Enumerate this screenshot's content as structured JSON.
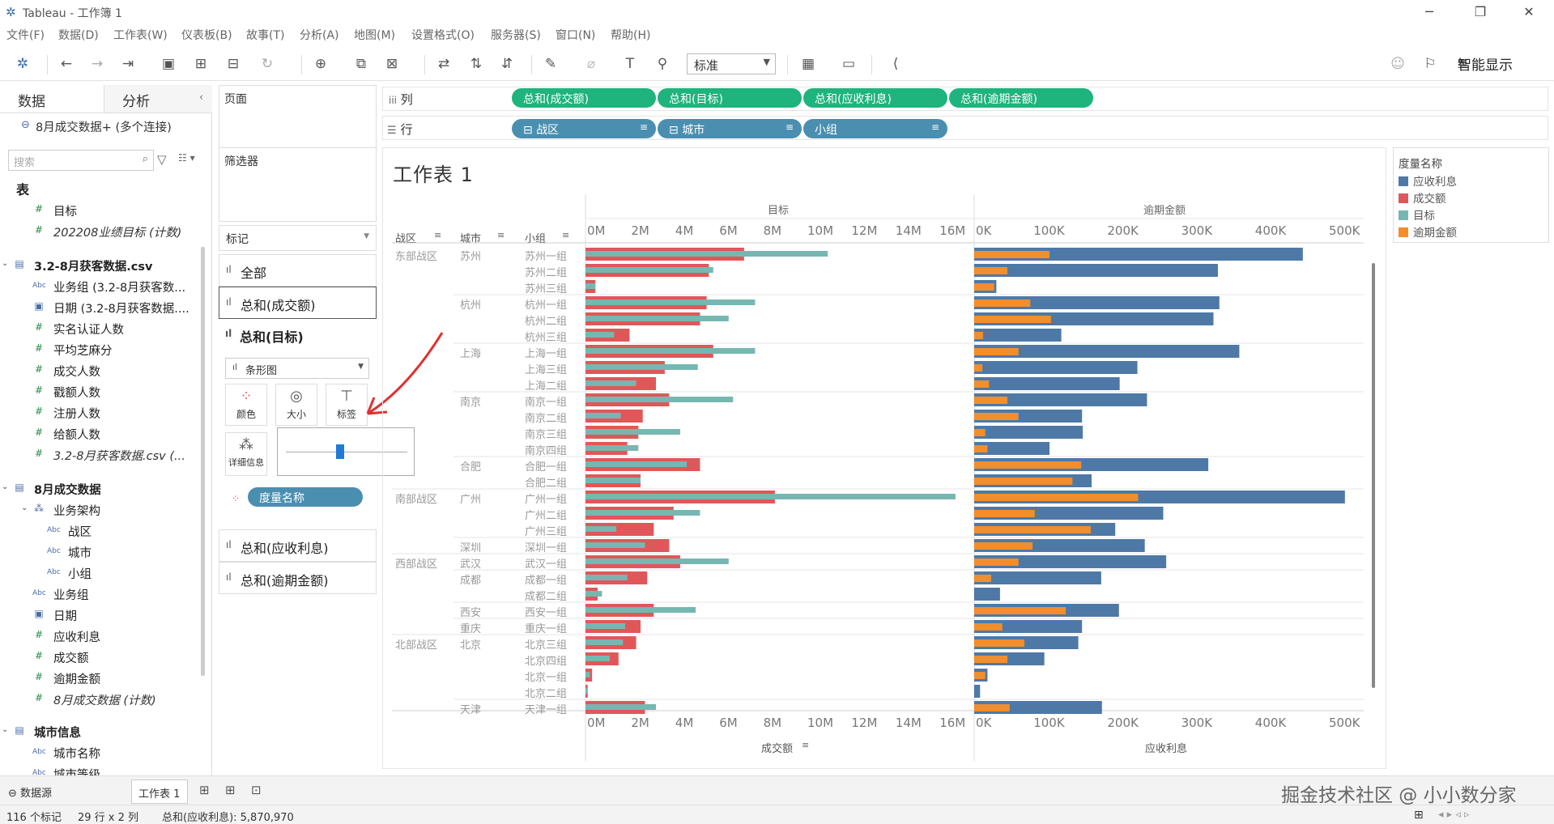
{
  "window": {
    "title": "Tableau - 工作簿 1"
  },
  "menu": [
    "文件(F)",
    "数据(D)",
    "工作表(W)",
    "仪表板(B)",
    "故事(T)",
    "分析(A)",
    "地图(M)",
    "设置格式(O)",
    "服务器(S)",
    "窗口(N)",
    "帮助(H)"
  ],
  "toolbar": {
    "fit": "标准",
    "smart_show": "智能显示"
  },
  "data_pane": {
    "tab_data": "数据",
    "tab_analysis": "分析",
    "connection": "8月成交数据+ (多个连接)",
    "search_placeholder": "搜索",
    "tables_header": "表",
    "items": [
      {
        "label": "目标",
        "kind": "measure",
        "level": 1
      },
      {
        "label": "202208业绩目标 (计数)",
        "kind": "measure",
        "level": 1,
        "italic": true
      },
      {
        "label": "3.2-8月获客数据.csv",
        "kind": "group",
        "level": 0
      },
      {
        "label": "业务组 (3.2-8月获客数...",
        "kind": "dim",
        "level": 1
      },
      {
        "label": "日期 (3.2-8月获客数据....",
        "kind": "date",
        "level": 1
      },
      {
        "label": "实名认证人数",
        "kind": "measure",
        "level": 1
      },
      {
        "label": "平均芝麻分",
        "kind": "measure",
        "level": 1
      },
      {
        "label": "成交人数",
        "kind": "measure",
        "level": 1
      },
      {
        "label": "戳额人数",
        "kind": "measure",
        "level": 1
      },
      {
        "label": "注册人数",
        "kind": "measure",
        "level": 1
      },
      {
        "label": "给额人数",
        "kind": "measure",
        "level": 1
      },
      {
        "label": "3.2-8月获客数据.csv (...",
        "kind": "measure",
        "level": 1,
        "italic": true
      },
      {
        "label": "8月成交数据",
        "kind": "group",
        "level": 0
      },
      {
        "label": "业务架构",
        "kind": "hier",
        "level": 1
      },
      {
        "label": "战区",
        "kind": "dim",
        "level": 2
      },
      {
        "label": "城市",
        "kind": "dim",
        "level": 2
      },
      {
        "label": "小组",
        "kind": "dim",
        "level": 2
      },
      {
        "label": "业务组",
        "kind": "dim",
        "level": 1
      },
      {
        "label": "日期",
        "kind": "date",
        "level": 1
      },
      {
        "label": "应收利息",
        "kind": "measure",
        "level": 1
      },
      {
        "label": "成交额",
        "kind": "measure",
        "level": 1
      },
      {
        "label": "逾期金额",
        "kind": "measure",
        "level": 1
      },
      {
        "label": "8月成交数据 (计数)",
        "kind": "measure",
        "level": 1,
        "italic": true
      },
      {
        "label": "城市信息",
        "kind": "group",
        "level": 0
      },
      {
        "label": "城市名称",
        "kind": "dim",
        "level": 1
      },
      {
        "label": "城市等级",
        "kind": "dim",
        "level": 1
      }
    ]
  },
  "shelves": {
    "pages": "页面",
    "filters": "筛选器",
    "marks": "标记",
    "marks_all": "全部",
    "marks_sum_deal": "总和(成交额)",
    "marks_sum_target": "总和(目标)",
    "mark_type": "条形图",
    "mark_color": "颜色",
    "mark_size": "大小",
    "mark_label": "标签",
    "mark_detail": "详细信息",
    "measure_names_pill": "度量名称",
    "marks_sum_interest": "总和(应收利息)",
    "marks_sum_overdue": "总和(逾期金额)",
    "columns_label": "列",
    "rows_label": "行",
    "columns": [
      "总和(成交额)",
      "总和(目标)",
      "总和(应收利息)",
      "总和(逾期金额)"
    ],
    "rows": [
      "战区",
      "城市",
      "小组"
    ]
  },
  "worksheet": {
    "title": "工作表 1",
    "header_left": "目标",
    "header_right": "逾期金额",
    "col_headers": [
      "战区",
      "城市",
      "小组"
    ],
    "left_axis_ticks": [
      "0M",
      "2M",
      "4M",
      "6M",
      "8M",
      "10M",
      "12M",
      "14M",
      "16M"
    ],
    "right_axis_ticks": [
      "0K",
      "100K",
      "200K",
      "300K",
      "400K",
      "500K"
    ],
    "bottom_left_label": "成交额",
    "bottom_right_label": "应收利息"
  },
  "legend": {
    "title": "度量名称",
    "items": [
      {
        "label": "应收利息",
        "color": "#4e79a7"
      },
      {
        "label": "成交额",
        "color": "#e15759"
      },
      {
        "label": "目标",
        "color": "#76b7b2"
      },
      {
        "label": "逾期金额",
        "color": "#f28e2b"
      }
    ]
  },
  "chart_data": {
    "type": "bar",
    "left_panel": {
      "series": [
        "成交额",
        "目标"
      ],
      "unit": "M",
      "xlim": [
        0,
        17
      ]
    },
    "right_panel": {
      "series": [
        "应收利息",
        "逾期金额"
      ],
      "unit": "K",
      "xlim": [
        0,
        520
      ]
    },
    "rows": [
      {
        "zone": "东部战区",
        "city": "苏州",
        "group": "苏州一组",
        "deal": 7.2,
        "target": 11.0,
        "interest": 445,
        "overdue": 102
      },
      {
        "zone": "",
        "city": "",
        "group": "苏州二组",
        "deal": 5.6,
        "target": 5.8,
        "interest": 330,
        "overdue": 45
      },
      {
        "zone": "",
        "city": "",
        "group": "苏州三组",
        "deal": 0.45,
        "target": 0.45,
        "interest": 30,
        "overdue": 27
      },
      {
        "zone": "",
        "city": "杭州",
        "group": "杭州一组",
        "deal": 5.5,
        "target": 7.7,
        "interest": 332,
        "overdue": 76
      },
      {
        "zone": "",
        "city": "",
        "group": "杭州二组",
        "deal": 5.2,
        "target": 6.5,
        "interest": 324,
        "overdue": 104
      },
      {
        "zone": "",
        "city": "",
        "group": "杭州三组",
        "deal": 2.0,
        "target": 1.3,
        "interest": 118,
        "overdue": 12
      },
      {
        "zone": "",
        "city": "上海",
        "group": "上海一组",
        "deal": 5.8,
        "target": 7.7,
        "interest": 359,
        "overdue": 60
      },
      {
        "zone": "",
        "city": "",
        "group": "上海三组",
        "deal": 3.6,
        "target": 5.1,
        "interest": 221,
        "overdue": 11
      },
      {
        "zone": "",
        "city": "",
        "group": "上海二组",
        "deal": 3.2,
        "target": 2.3,
        "interest": 197,
        "overdue": 20
      },
      {
        "zone": "",
        "city": "南京",
        "group": "南京一组",
        "deal": 3.8,
        "target": 6.7,
        "interest": 234,
        "overdue": 45
      },
      {
        "zone": "",
        "city": "",
        "group": "南京二组",
        "deal": 2.6,
        "target": 1.6,
        "interest": 146,
        "overdue": 60
      },
      {
        "zone": "",
        "city": "",
        "group": "南京三组",
        "deal": 2.4,
        "target": 4.3,
        "interest": 147,
        "overdue": 15
      },
      {
        "zone": "",
        "city": "",
        "group": "南京四组",
        "deal": 1.9,
        "target": 2.4,
        "interest": 102,
        "overdue": 18
      },
      {
        "zone": "",
        "city": "合肥",
        "group": "合肥一组",
        "deal": 5.2,
        "target": 4.6,
        "interest": 317,
        "overdue": 145
      },
      {
        "zone": "",
        "city": "",
        "group": "合肥二组",
        "deal": 2.5,
        "target": 2.5,
        "interest": 159,
        "overdue": 133
      },
      {
        "zone": "南部战区",
        "city": "广州",
        "group": "广州一组",
        "deal": 8.6,
        "target": 16.8,
        "interest": 502,
        "overdue": 222
      },
      {
        "zone": "",
        "city": "",
        "group": "广州二组",
        "deal": 4.0,
        "target": 5.2,
        "interest": 256,
        "overdue": 82
      },
      {
        "zone": "",
        "city": "",
        "group": "广州三组",
        "deal": 3.1,
        "target": 1.4,
        "interest": 191,
        "overdue": 158
      },
      {
        "zone": "",
        "city": "深圳",
        "group": "深圳一组",
        "deal": 3.8,
        "target": 2.7,
        "interest": 231,
        "overdue": 79
      },
      {
        "zone": "西部战区",
        "city": "武汉",
        "group": "武汉一组",
        "deal": 4.3,
        "target": 6.5,
        "interest": 260,
        "overdue": 60
      },
      {
        "zone": "",
        "city": "成都",
        "group": "成都一组",
        "deal": 2.8,
        "target": 1.9,
        "interest": 172,
        "overdue": 23
      },
      {
        "zone": "",
        "city": "",
        "group": "成都二组",
        "deal": 0.55,
        "target": 0.75,
        "interest": 35,
        "overdue": 0
      },
      {
        "zone": "",
        "city": "西安",
        "group": "西安一组",
        "deal": 3.1,
        "target": 5.0,
        "interest": 196,
        "overdue": 124
      },
      {
        "zone": "",
        "city": "重庆",
        "group": "重庆一组",
        "deal": 2.5,
        "target": 1.8,
        "interest": 146,
        "overdue": 38
      },
      {
        "zone": "北部战区",
        "city": "北京",
        "group": "北京三组",
        "deal": 2.3,
        "target": 1.7,
        "interest": 141,
        "overdue": 68
      },
      {
        "zone": "",
        "city": "",
        "group": "北京四组",
        "deal": 1.5,
        "target": 1.1,
        "interest": 95,
        "overdue": 45
      },
      {
        "zone": "",
        "city": "",
        "group": "北京一组",
        "deal": 0.3,
        "target": 0.2,
        "interest": 18,
        "overdue": 15
      },
      {
        "zone": "",
        "city": "",
        "group": "北京二组",
        "deal": 0.1,
        "target": 0.1,
        "interest": 8,
        "overdue": 0
      },
      {
        "zone": "",
        "city": "天津",
        "group": "天津一组",
        "deal": 2.7,
        "target": 3.2,
        "interest": 173,
        "overdue": 48
      }
    ]
  },
  "bottom": {
    "datasource": "数据源",
    "sheet_tab": "工作表 1",
    "watermark": "掘金技术社区 @ 小小数分家"
  },
  "status": {
    "marks": "116 个标记",
    "rows_cols": "29 行 x 2 列",
    "sum": "总和(应收利息): 5,870,970"
  }
}
